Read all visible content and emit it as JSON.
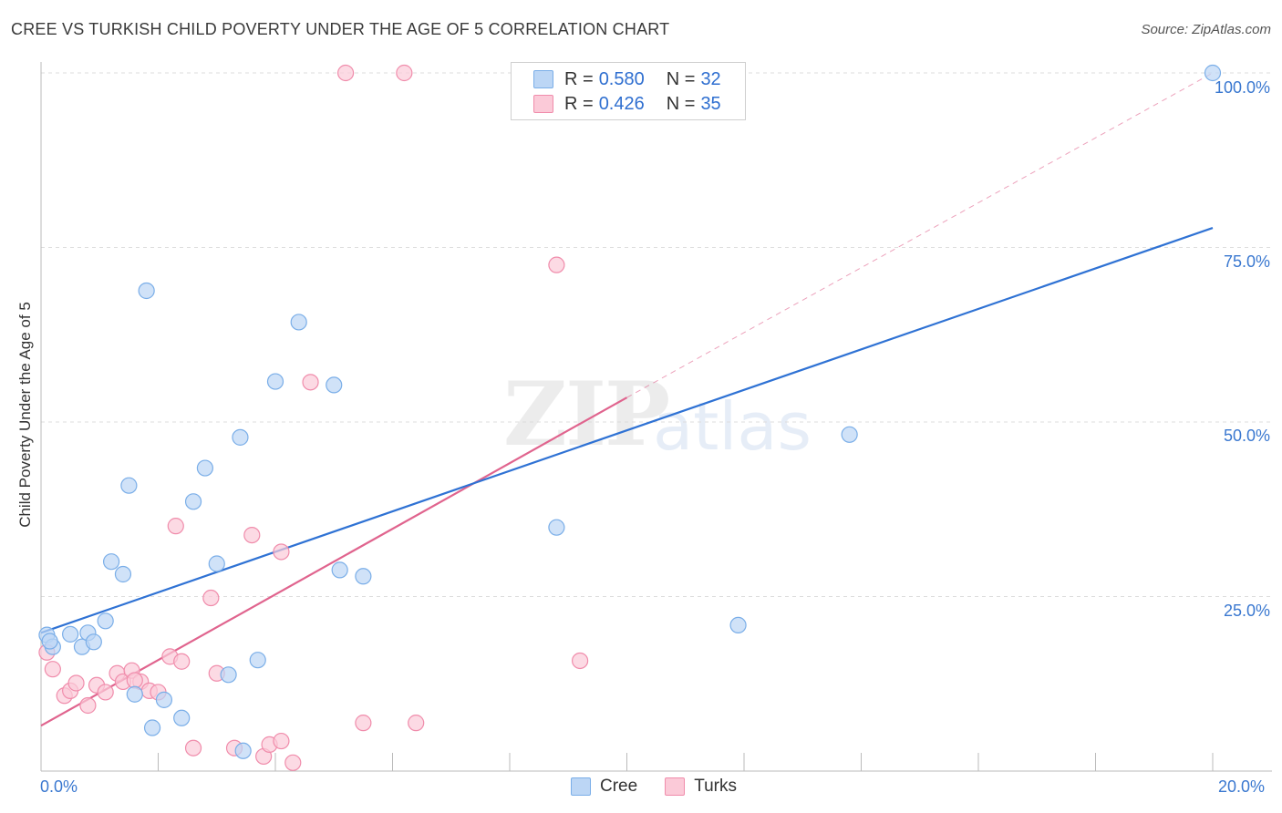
{
  "header": {
    "title": "CREE VS TURKISH CHILD POVERTY UNDER THE AGE OF 5 CORRELATION CHART",
    "source": "Source: ZipAtlas.com"
  },
  "legend": {
    "rows": [
      {
        "r_label": "R = ",
        "r_value": "0.580",
        "n_label": "N = ",
        "n_value": "32",
        "color": "#7aaee8"
      },
      {
        "r_label": "R = ",
        "r_value": "0.426",
        "n_label": "N = ",
        "n_value": "35",
        "color": "#f08cab"
      }
    ],
    "series_names": [
      "Cree",
      "Turks"
    ]
  },
  "watermark": {
    "zip": "ZIP",
    "atlas": "atlas"
  },
  "colors": {
    "cree_fill": "#bcd6f5",
    "cree_stroke": "#7aaee8",
    "cree_line": "#2f72d4",
    "turks_fill": "#fbcad8",
    "turks_stroke": "#f08cab",
    "turks_line": "#e0648e",
    "axis_text": "#3a78d0",
    "grid": "#dddddd"
  },
  "chart_data": {
    "type": "scatter",
    "title": "CREE VS TURKISH CHILD POVERTY UNDER THE AGE OF 5 CORRELATION CHART",
    "xlabel": "",
    "ylabel": "Child Poverty Under the Age of 5",
    "xlim": [
      0,
      20
    ],
    "ylim": [
      0,
      100
    ],
    "x_tick_labels": [
      "0.0%",
      "20.0%"
    ],
    "y_tick_labels": [
      "25.0%",
      "50.0%",
      "75.0%",
      "100.0%"
    ],
    "y_ticks": [
      25,
      50,
      75,
      100
    ],
    "grid": true,
    "legend_position": "top-center",
    "series": [
      {
        "name": "Cree",
        "points": [
          [
            0.1,
            19.5
          ],
          [
            0.2,
            17.8
          ],
          [
            0.5,
            19.6
          ],
          [
            0.7,
            17.8
          ],
          [
            0.8,
            19.8
          ],
          [
            0.9,
            18.5
          ],
          [
            1.1,
            21.5
          ],
          [
            1.2,
            30.0
          ],
          [
            1.4,
            28.2
          ],
          [
            1.5,
            40.9
          ],
          [
            1.6,
            11.0
          ],
          [
            1.8,
            68.8
          ],
          [
            1.9,
            6.2
          ],
          [
            2.1,
            10.2
          ],
          [
            2.4,
            7.6
          ],
          [
            2.6,
            38.6
          ],
          [
            2.8,
            43.4
          ],
          [
            3.0,
            29.7
          ],
          [
            3.2,
            13.8
          ],
          [
            3.4,
            47.8
          ],
          [
            3.45,
            2.9
          ],
          [
            3.7,
            15.9
          ],
          [
            4.0,
            55.8
          ],
          [
            4.4,
            64.3
          ],
          [
            5.0,
            55.3
          ],
          [
            5.1,
            28.8
          ],
          [
            5.5,
            27.9
          ],
          [
            8.8,
            34.9
          ],
          [
            11.9,
            20.9
          ],
          [
            13.8,
            48.2
          ],
          [
            20.0,
            100.0
          ],
          [
            0.15,
            18.6
          ]
        ],
        "trendline": {
          "x": [
            0,
            20
          ],
          "y": [
            19.8,
            77.8
          ]
        }
      },
      {
        "name": "Turks",
        "points": [
          [
            0.1,
            17.0
          ],
          [
            0.2,
            14.6
          ],
          [
            0.4,
            10.8
          ],
          [
            0.5,
            11.5
          ],
          [
            0.6,
            12.6
          ],
          [
            0.8,
            9.4
          ],
          [
            0.95,
            12.3
          ],
          [
            1.1,
            11.3
          ],
          [
            1.3,
            14.0
          ],
          [
            1.4,
            12.8
          ],
          [
            1.55,
            14.4
          ],
          [
            1.7,
            12.8
          ],
          [
            1.85,
            11.5
          ],
          [
            2.0,
            11.3
          ],
          [
            2.2,
            16.4
          ],
          [
            2.3,
            35.1
          ],
          [
            2.4,
            15.7
          ],
          [
            2.6,
            3.3
          ],
          [
            2.9,
            24.8
          ],
          [
            3.0,
            14.0
          ],
          [
            3.3,
            3.3
          ],
          [
            3.6,
            33.8
          ],
          [
            3.8,
            2.1
          ],
          [
            3.9,
            3.8
          ],
          [
            4.1,
            4.3
          ],
          [
            4.1,
            31.4
          ],
          [
            4.3,
            1.2
          ],
          [
            4.6,
            55.7
          ],
          [
            5.2,
            100.0
          ],
          [
            6.2,
            100.0
          ],
          [
            5.5,
            6.9
          ],
          [
            6.4,
            6.9
          ],
          [
            8.8,
            72.5
          ],
          [
            9.2,
            15.8
          ],
          [
            1.6,
            13.0
          ]
        ],
        "trendline": {
          "x": [
            0,
            10
          ],
          "y": [
            6.5,
            53.5
          ]
        },
        "trendline_extension": {
          "x": [
            10,
            20
          ],
          "y": [
            53.5,
            100.0
          ]
        }
      }
    ]
  }
}
